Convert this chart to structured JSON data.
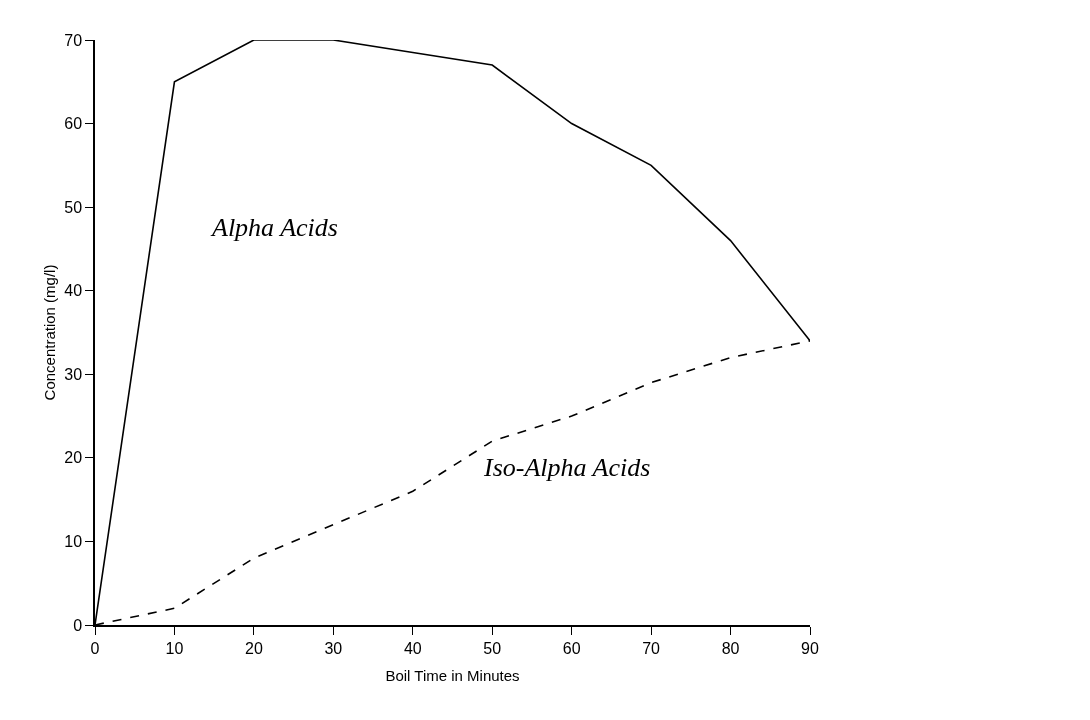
{
  "chart_data": {
    "type": "line",
    "xlabel": "Boil Time in Minutes",
    "ylabel": "Concentration (mg/l)",
    "x": [
      0,
      10,
      20,
      30,
      40,
      50,
      60,
      70,
      80,
      90
    ],
    "series": [
      {
        "name": "Alpha Acids",
        "color": "#000000",
        "line_style": "solid",
        "values": [
          0,
          65,
          70,
          70,
          68.5,
          67,
          60,
          55,
          46,
          34
        ]
      },
      {
        "name": "Iso-Alpha Acids",
        "color": "#000000",
        "line_style": "dashed",
        "values": [
          0,
          2,
          8,
          12,
          16,
          22,
          25,
          29,
          32,
          34
        ]
      }
    ],
    "xlim": [
      0,
      90
    ],
    "ylim": [
      0,
      70
    ],
    "xticks": [
      0,
      10,
      20,
      30,
      40,
      50,
      60,
      70,
      80,
      90
    ],
    "yticks": [
      0,
      10,
      20,
      30,
      40,
      50,
      60,
      70
    ],
    "grid": false,
    "legend": false,
    "marker": "none"
  }
}
